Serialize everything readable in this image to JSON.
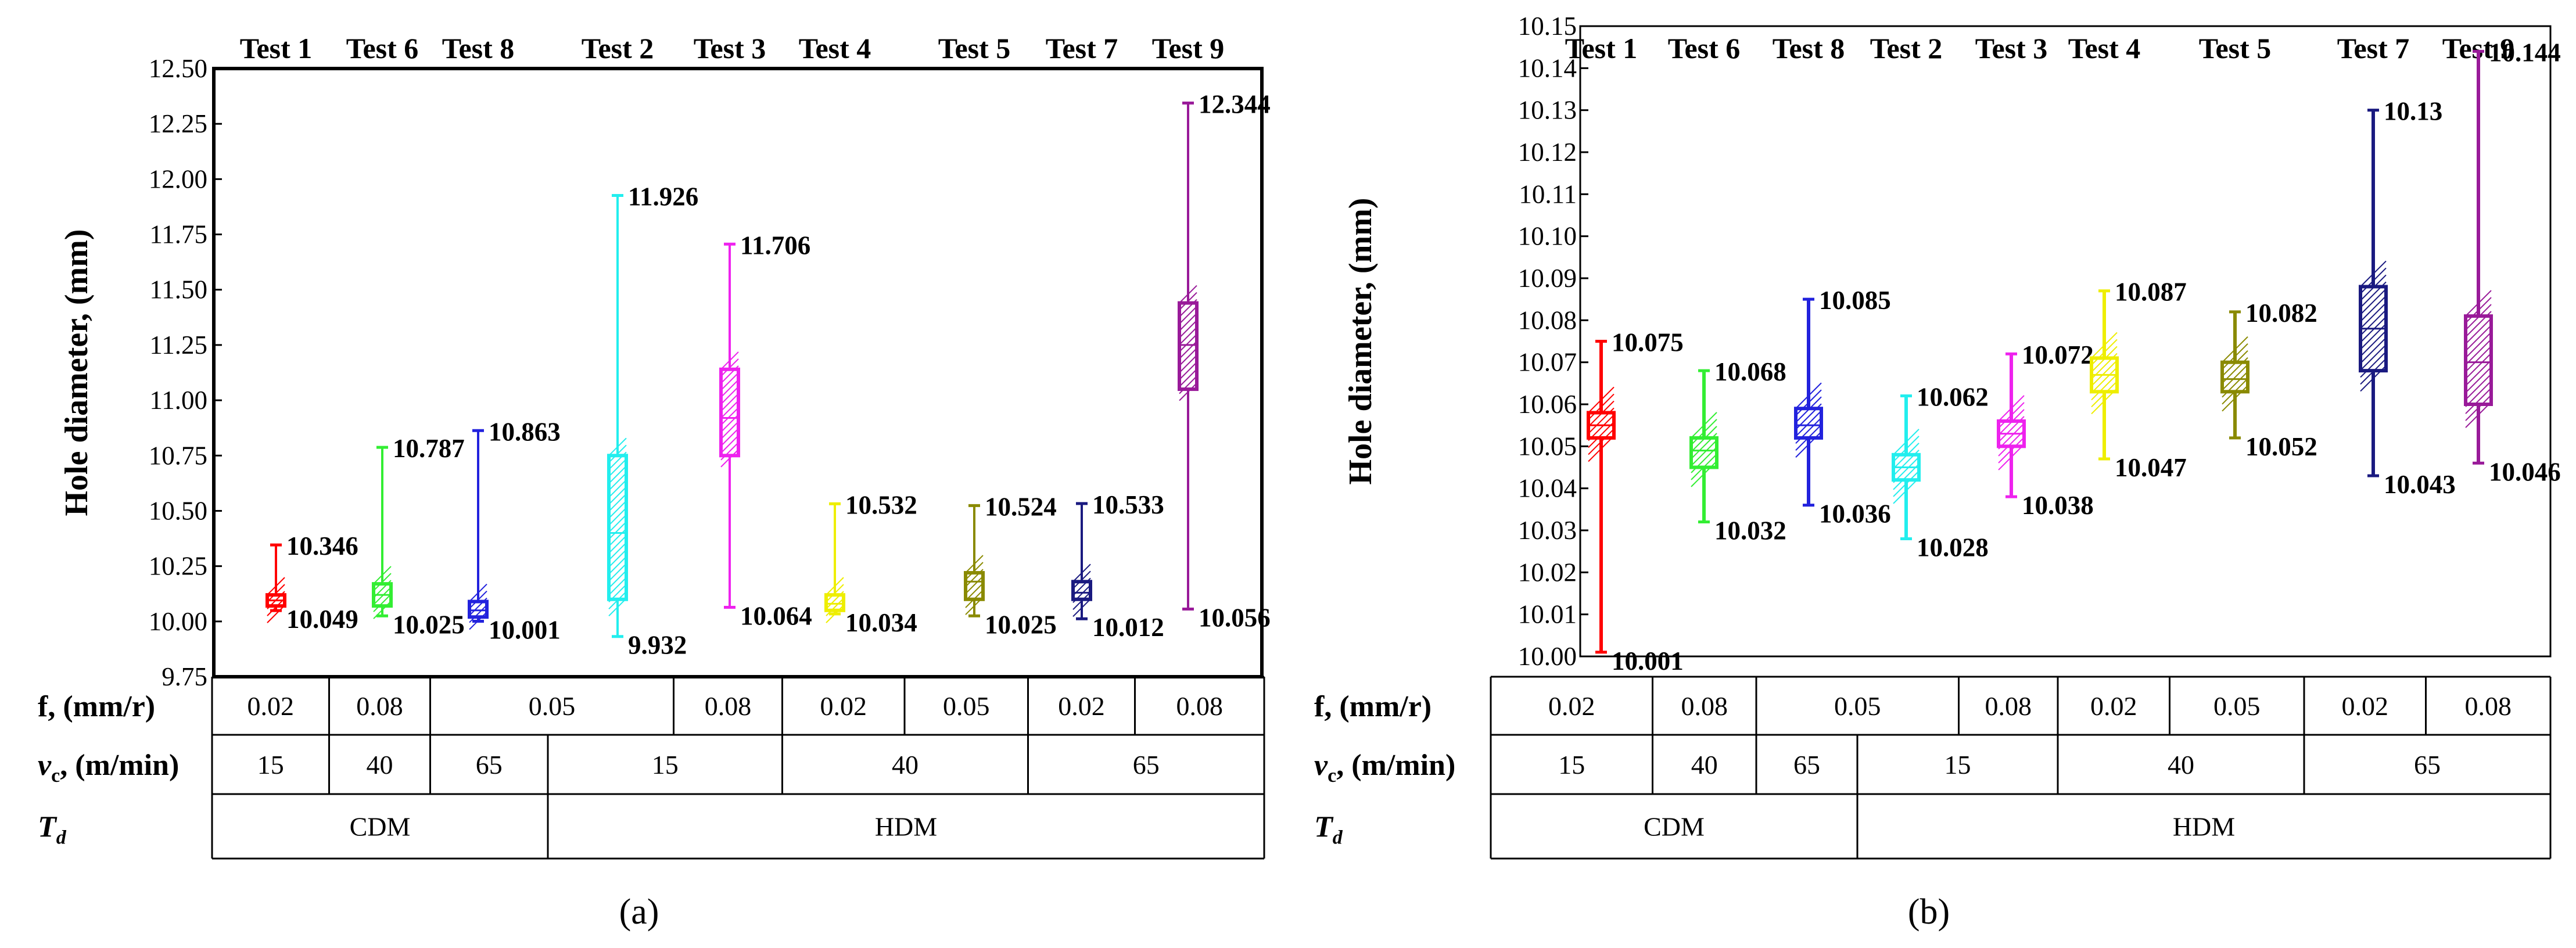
{
  "figure": {
    "caption_a": "(a)",
    "caption_b": "(b)"
  },
  "param_labels": {
    "f": "f, (mm/r)",
    "vc": "v",
    "vc_sub": "c",
    "vc_unit": ", (m/min)",
    "td": "T",
    "td_sub": "d"
  },
  "chart_data": [
    {
      "type": "box",
      "panel": "(a)",
      "title": "",
      "ylabel": "Hole diameter, (mm)",
      "ylim": [
        9.75,
        12.5
      ],
      "yticks": [
        "9.75",
        "10.00",
        "10.25",
        "10.50",
        "10.75",
        "11.00",
        "11.25",
        "11.50",
        "11.75",
        "12.00",
        "12.25",
        "12.50"
      ],
      "categories": [
        "Test 1",
        "Test 6",
        "Test 8",
        "Test 2",
        "Test 3",
        "Test 4",
        "Test 5",
        "Test 7",
        "Test 9"
      ],
      "series": [
        {
          "name": "Test 1",
          "color": "#ff0000",
          "min": 10.049,
          "q1": 10.07,
          "median": 10.095,
          "q3": 10.12,
          "max": 10.346,
          "max_label": "10.346",
          "min_label": "10.049"
        },
        {
          "name": "Test 6",
          "color": "#33ee33",
          "min": 10.025,
          "q1": 10.07,
          "median": 10.12,
          "q3": 10.17,
          "max": 10.787,
          "max_label": "10.787",
          "min_label": "10.025"
        },
        {
          "name": "Test 8",
          "color": "#2222dd",
          "min": 10.001,
          "q1": 10.02,
          "median": 10.05,
          "q3": 10.09,
          "max": 10.863,
          "max_label": "10.863",
          "min_label": "10.001"
        },
        {
          "name": "Test 2",
          "color": "#22eeee",
          "min": 9.932,
          "q1": 10.1,
          "median": 10.4,
          "q3": 10.75,
          "max": 11.926,
          "max_label": "11.926",
          "min_label": "9.932"
        },
        {
          "name": "Test 3",
          "color": "#ee22ee",
          "min": 10.064,
          "q1": 10.75,
          "median": 10.92,
          "q3": 11.14,
          "max": 11.706,
          "max_label": "11.706",
          "min_label": "10.064"
        },
        {
          "name": "Test 4",
          "color": "#eeee00",
          "min": 10.034,
          "q1": 10.05,
          "median": 10.08,
          "q3": 10.12,
          "max": 10.532,
          "max_label": "10.532",
          "min_label": "10.034"
        },
        {
          "name": "Test 5",
          "color": "#8a8a00",
          "min": 10.025,
          "q1": 10.1,
          "median": 10.18,
          "q3": 10.22,
          "max": 10.524,
          "max_label": "10.524",
          "min_label": "10.025"
        },
        {
          "name": "Test 7",
          "color": "#1a1a80",
          "min": 10.012,
          "q1": 10.1,
          "median": 10.13,
          "q3": 10.18,
          "max": 10.533,
          "max_label": "10.533",
          "min_label": "10.012"
        },
        {
          "name": "Test 9",
          "color": "#991a99",
          "min": 10.056,
          "q1": 11.05,
          "median": 11.25,
          "q3": 11.44,
          "max": 12.344,
          "max_label": "12.344",
          "min_label": "10.056"
        }
      ],
      "table": {
        "f": [
          {
            "label": "0.02",
            "span": 1
          },
          {
            "label": "0.08",
            "span": 1
          },
          {
            "label": "0.05",
            "span": 2
          },
          {
            "label": "0.08",
            "span": 1
          },
          {
            "label": "0.02",
            "span": 1
          },
          {
            "label": "0.05",
            "span": 1
          },
          {
            "label": "0.02",
            "span": 1
          },
          {
            "label": "0.08",
            "span": 1
          }
        ],
        "vc": [
          {
            "label": "15",
            "span": 1
          },
          {
            "label": "40",
            "span": 1
          },
          {
            "label": "65",
            "span": 1
          },
          {
            "label": "15",
            "span": 2
          },
          {
            "label": "40",
            "span": 2
          },
          {
            "label": "65",
            "span": 2
          }
        ],
        "td": [
          {
            "label": "CDM",
            "span": 3
          },
          {
            "label": "HDM",
            "span": 6
          }
        ]
      }
    },
    {
      "type": "box",
      "panel": "(b)",
      "title": "",
      "ylabel": "Hole diameter, (mm)",
      "ylim": [
        10.0,
        10.15
      ],
      "yticks": [
        "10.00",
        "10.01",
        "10.02",
        "10.03",
        "10.04",
        "10.05",
        "10.06",
        "10.07",
        "10.08",
        "10.09",
        "10.10",
        "10.11",
        "10.12",
        "10.13",
        "10.14",
        "10.15"
      ],
      "categories": [
        "Test 1",
        "Test 6",
        "Test 8",
        "Test 2",
        "Test 3",
        "Test 4",
        "Test 5",
        "Test 7",
        "Test 9"
      ],
      "series": [
        {
          "name": "Test 1",
          "color": "#ff0000",
          "min": 10.001,
          "q1": 10.052,
          "median": 10.055,
          "q3": 10.058,
          "max": 10.075,
          "max_label": "10.075",
          "min_label": "10.001"
        },
        {
          "name": "Test 6",
          "color": "#33ee33",
          "min": 10.032,
          "q1": 10.045,
          "median": 10.049,
          "q3": 10.052,
          "max": 10.068,
          "max_label": "10.068",
          "min_label": "10.032"
        },
        {
          "name": "Test 8",
          "color": "#2222dd",
          "min": 10.036,
          "q1": 10.052,
          "median": 10.055,
          "q3": 10.059,
          "max": 10.085,
          "max_label": "10.085",
          "min_label": "10.036"
        },
        {
          "name": "Test 2",
          "color": "#22eeee",
          "min": 10.028,
          "q1": 10.042,
          "median": 10.045,
          "q3": 10.048,
          "max": 10.062,
          "max_label": "10.062",
          "min_label": "10.028"
        },
        {
          "name": "Test 3",
          "color": "#ee22ee",
          "min": 10.038,
          "q1": 10.05,
          "median": 10.053,
          "q3": 10.056,
          "max": 10.072,
          "max_label": "10.072",
          "min_label": "10.038"
        },
        {
          "name": "Test 4",
          "color": "#eeee00",
          "min": 10.047,
          "q1": 10.063,
          "median": 10.067,
          "q3": 10.071,
          "max": 10.087,
          "max_label": "10.087",
          "min_label": "10.047"
        },
        {
          "name": "Test 5",
          "color": "#8a8a00",
          "min": 10.052,
          "q1": 10.063,
          "median": 10.066,
          "q3": 10.07,
          "max": 10.082,
          "max_label": "10.082",
          "min_label": "10.052"
        },
        {
          "name": "Test 7",
          "color": "#1a1a80",
          "min": 10.043,
          "q1": 10.068,
          "median": 10.078,
          "q3": 10.088,
          "max": 10.13,
          "max_label": "10.13",
          "min_label": "10.043"
        },
        {
          "name": "Test 9",
          "color": "#991a99",
          "min": 10.046,
          "q1": 10.06,
          "median": 10.07,
          "q3": 10.081,
          "max": 10.144,
          "max_label": "10.144",
          "min_label": "10.046"
        }
      ],
      "table": {
        "f": [
          {
            "label": "0.02",
            "span": 1
          },
          {
            "label": "0.08",
            "span": 1
          },
          {
            "label": "0.05",
            "span": 2
          },
          {
            "label": "0.08",
            "span": 1
          },
          {
            "label": "0.02",
            "span": 1
          },
          {
            "label": "0.05",
            "span": 1
          },
          {
            "label": "0.02",
            "span": 1
          },
          {
            "label": "0.08",
            "span": 1
          }
        ],
        "vc": [
          {
            "label": "15",
            "span": 1
          },
          {
            "label": "40",
            "span": 1
          },
          {
            "label": "65",
            "span": 1
          },
          {
            "label": "15",
            "span": 2
          },
          {
            "label": "40",
            "span": 2
          },
          {
            "label": "65",
            "span": 2
          }
        ],
        "td": [
          {
            "label": "CDM",
            "span": 3
          },
          {
            "label": "HDM",
            "span": 6
          }
        ]
      }
    }
  ]
}
